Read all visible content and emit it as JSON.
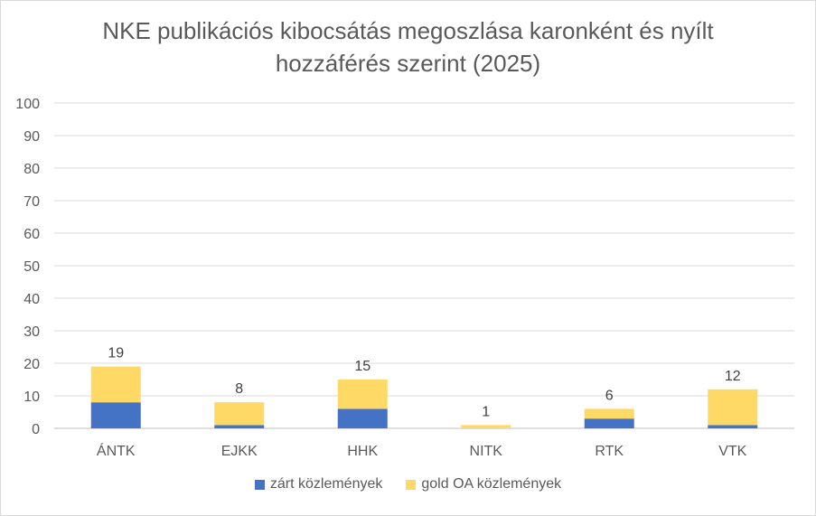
{
  "chart_data": {
    "type": "bar",
    "stacked": true,
    "title": "NKE publikációs kibocsátás megoszlása karonként és nyílt hozzáférés szerint (2025)",
    "title_lines": [
      "NKE publikációs kibocsátás megoszlása karonként és nyílt",
      "hozzáférés szerint (2025)"
    ],
    "categories": [
      "ÁNTK",
      "EJKK",
      "HHK",
      "NITK",
      "RTK",
      "VTK"
    ],
    "series": [
      {
        "name": "zárt közlemények",
        "color": "#4472c4",
        "values": [
          8,
          1,
          6,
          0,
          3,
          1
        ]
      },
      {
        "name": "gold OA közlemények",
        "color": "#ffd966",
        "values": [
          11,
          7,
          9,
          1,
          3,
          11
        ]
      }
    ],
    "totals": [
      19,
      8,
      15,
      1,
      6,
      12
    ],
    "ylim": [
      0,
      100
    ],
    "yticks": [
      0,
      10,
      20,
      30,
      40,
      50,
      60,
      70,
      80,
      90,
      100
    ],
    "grid": true,
    "legend_position": "bottom",
    "xlabel": "",
    "ylabel": ""
  }
}
